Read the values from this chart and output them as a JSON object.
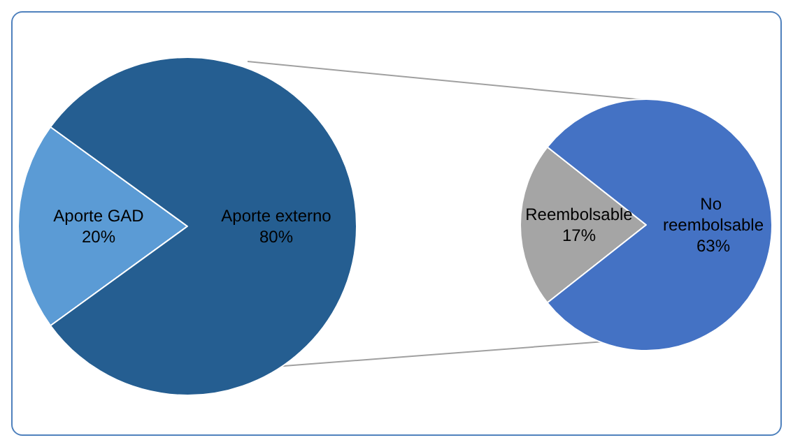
{
  "chart_data": [
    {
      "type": "pie",
      "categories": [
        "Aporte GAD",
        "Aporte externo"
      ],
      "values": [
        20,
        80
      ],
      "value_labels": [
        "20%",
        "80%"
      ],
      "colors": [
        "#5b9bd5",
        "#255e91"
      ]
    },
    {
      "type": "pie",
      "categories": [
        "Reembolsable",
        "No reembolsable"
      ],
      "values": [
        17,
        63
      ],
      "value_labels": [
        "17%",
        "63%"
      ],
      "colors": [
        "#a5a5a5",
        "#4472c4"
      ]
    }
  ]
}
